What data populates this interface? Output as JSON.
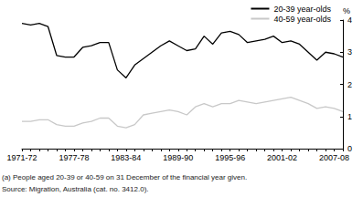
{
  "chart_data": {
    "type": "line",
    "categories": [
      "1971-72",
      null,
      null,
      null,
      null,
      null,
      "1977-78",
      null,
      null,
      null,
      null,
      null,
      "1983-84",
      null,
      null,
      null,
      null,
      null,
      "1989-90",
      null,
      null,
      null,
      null,
      null,
      "1995-96",
      null,
      null,
      null,
      null,
      null,
      "2001-02",
      null,
      null,
      null,
      null,
      null,
      "2007-08",
      null
    ],
    "series": [
      {
        "name": "20-39 year-olds",
        "color": "#000000",
        "values": [
          3.9,
          3.85,
          3.9,
          3.8,
          2.9,
          2.85,
          2.85,
          3.15,
          3.2,
          3.3,
          3.3,
          2.45,
          2.2,
          2.6,
          2.8,
          3.0,
          3.2,
          3.35,
          3.2,
          3.05,
          3.1,
          3.5,
          3.25,
          3.6,
          3.65,
          3.55,
          3.3,
          3.35,
          3.4,
          3.5,
          3.3,
          3.35,
          3.25,
          3.0,
          2.75,
          3.0,
          2.95,
          2.85
        ]
      },
      {
        "name": "40-59 year-olds",
        "color": "#c8c8c8",
        "values": [
          0.85,
          0.85,
          0.9,
          0.9,
          0.75,
          0.7,
          0.7,
          0.8,
          0.85,
          0.95,
          0.95,
          0.7,
          0.65,
          0.75,
          1.05,
          1.1,
          1.15,
          1.2,
          1.15,
          1.05,
          1.3,
          1.4,
          1.3,
          1.4,
          1.4,
          1.5,
          1.45,
          1.4,
          1.45,
          1.5,
          1.55,
          1.6,
          1.5,
          1.4,
          1.25,
          1.3,
          1.25,
          1.15
        ]
      }
    ],
    "ylabel": "%",
    "ylim": [
      0,
      4
    ],
    "yticks": [
      0,
      1,
      2,
      3,
      4
    ],
    "grid": false,
    "legend": "top-right",
    "annotations": [
      "(a) People aged 20-39 or 40-59 on 31 December of the financial year given.",
      "Source: Migration, Australia (cat. no. 3412.0)."
    ]
  }
}
